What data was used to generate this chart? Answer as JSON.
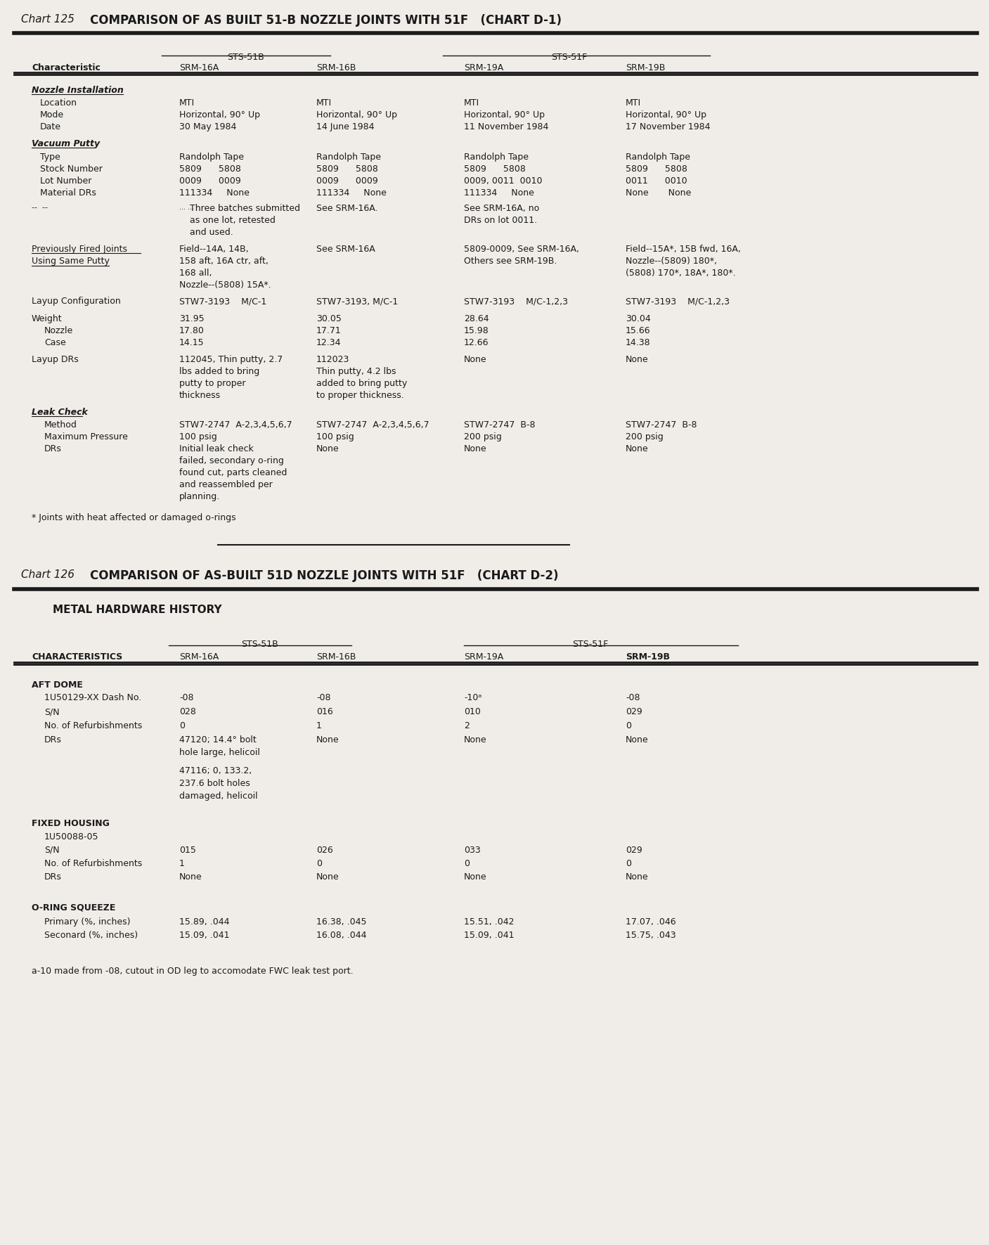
{
  "bg_color": "#f0ede8",
  "text_color": "#1a1a1a",
  "chart125_label": "Chart 125",
  "chart125_title": "COMPARISON OF AS BUILT 51-B NOZZLE JOINTS WITH 51F   (CHART D-1)",
  "chart126_label": "Chart 126",
  "chart126_title": "COMPARISON OF AS-BUILT 51D NOZZLE JOINTS WITH 51F   (CHART D-2)",
  "chart126_subtitle": "METAL HARDWARE HISTORY"
}
